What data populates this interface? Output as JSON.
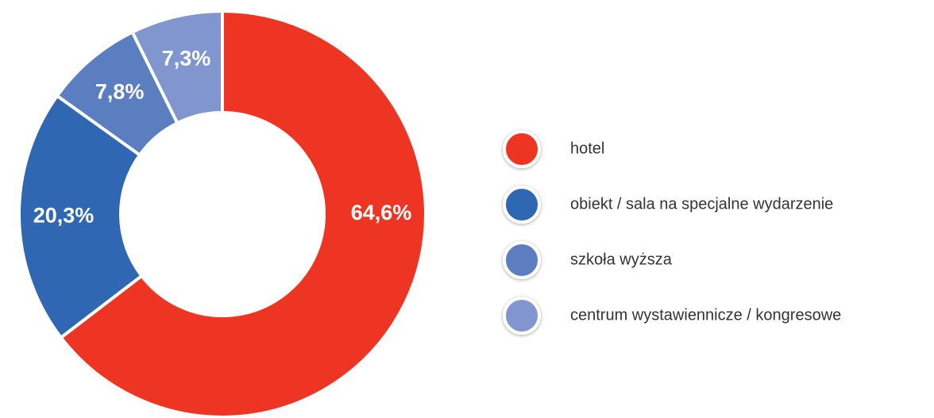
{
  "chart_data": {
    "type": "pie",
    "categories": [
      "hotel",
      "obiekt / sala na specjalne wydarzenie",
      "szkoła wyższa",
      "centrum wystawiennicze / kongresowe"
    ],
    "values": [
      64.6,
      20.3,
      7.8,
      7.3
    ],
    "value_labels": [
      "64,6%",
      "20,3%",
      "7,8%",
      "7,3%"
    ],
    "colors": [
      "#ee3524",
      "#2f67b2",
      "#5b7ec1",
      "#8196cf"
    ],
    "donut": true,
    "legend": "right"
  }
}
